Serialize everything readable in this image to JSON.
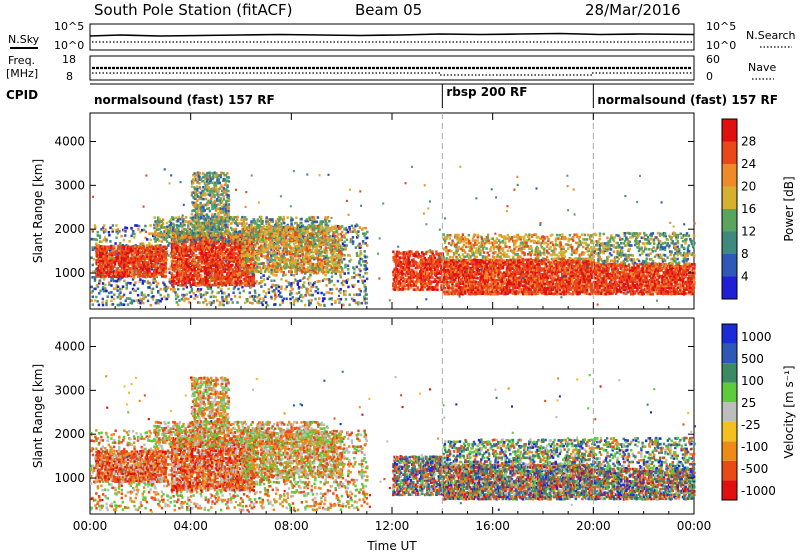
{
  "header": {
    "title": "South Pole Station (fitACF)",
    "beam": "Beam 05",
    "date": "28/Mar/2016"
  },
  "aux_panels": {
    "nsky_label": "N.Sky",
    "nsky_ticks": [
      "10^5",
      "10^0"
    ],
    "nsearch_label": "N.Search",
    "nsearch_ticks": [
      "10^5",
      "10^0"
    ],
    "freq_label": "Freq.",
    "freq_unit": "[MHz]",
    "freq_ticks": [
      "18",
      "8"
    ],
    "nave_label": "Nave",
    "nave_ticks": [
      "60",
      "0"
    ],
    "cpid_label": "CPID",
    "modes": [
      {
        "label": "normalsound (fast) 157 RF",
        "start_h": 0,
        "end_h": 14
      },
      {
        "label": "rbsp 200 RF",
        "start_h": 14,
        "end_h": 20
      },
      {
        "label": "normalsound (fast) 157 RF",
        "start_h": 20,
        "end_h": 24
      }
    ]
  },
  "chart_data": [
    {
      "type": "heatmap",
      "quantity": "power",
      "ylabel": "Slant Range [km]",
      "xlabel": "",
      "x_ticks": [
        "00:00",
        "04:00",
        "08:00",
        "12:00",
        "16:00",
        "20:00",
        "00:00"
      ],
      "x_range_hours": [
        0,
        24
      ],
      "y_ticks": [
        1000,
        2000,
        3000,
        4000
      ],
      "ylim": [
        180,
        4650
      ],
      "colorbar": {
        "label": "Power [dB]",
        "ticks": [
          "4",
          "8",
          "12",
          "16",
          "20",
          "24",
          "28"
        ],
        "range": [
          0,
          30
        ],
        "colors": [
          "#1f1fd6",
          "#2f58b8",
          "#3f8a7c",
          "#5aa45e",
          "#d6b030",
          "#ef8a2a",
          "#e8481a",
          "#e01010"
        ]
      },
      "mode_change_hours": [
        14,
        20
      ]
    },
    {
      "type": "heatmap",
      "quantity": "velocity",
      "ylabel": "Slant Range [km]",
      "xlabel": "Time UT",
      "x_ticks": [
        "00:00",
        "04:00",
        "08:00",
        "12:00",
        "16:00",
        "20:00",
        "00:00"
      ],
      "x_range_hours": [
        0,
        24
      ],
      "y_ticks": [
        1000,
        2000,
        3000,
        4000
      ],
      "ylim": [
        180,
        4650
      ],
      "colorbar": {
        "label": "Velocity [m s⁻¹]",
        "ticks": [
          "1000",
          "500",
          "100",
          "25",
          "-25",
          "-100",
          "-500",
          "-1000"
        ],
        "colors": [
          "#1b2bd8",
          "#2d58b5",
          "#3c8a62",
          "#5ecb3c",
          "#bdbdbd",
          "#f2c020",
          "#ef8a1a",
          "#e84a18",
          "#e01010"
        ]
      },
      "mode_change_hours": [
        14,
        20
      ]
    }
  ]
}
